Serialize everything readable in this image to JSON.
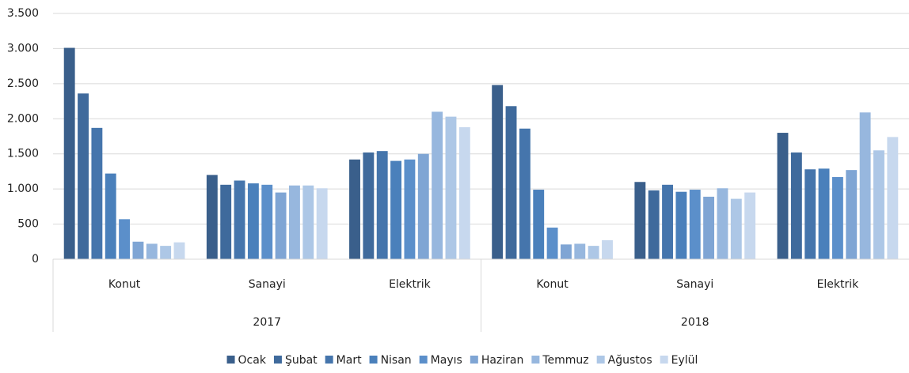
{
  "chart_data": {
    "type": "bar",
    "groups": [
      {
        "name": "2017",
        "categories": [
          "Konut",
          "Sanayi",
          "Elektrik"
        ]
      },
      {
        "name": "2018",
        "categories": [
          "Konut",
          "Sanayi",
          "Elektrik"
        ]
      }
    ],
    "series": [
      {
        "name": "Ocak",
        "color": "#3a5f8b",
        "values": [
          3010,
          1200,
          1420,
          2480,
          1100,
          1800
        ]
      },
      {
        "name": "Şubat",
        "color": "#3f6a9c",
        "values": [
          2360,
          1060,
          1520,
          2180,
          980,
          1520
        ]
      },
      {
        "name": "Mart",
        "color": "#4575ac",
        "values": [
          1870,
          1120,
          1540,
          1860,
          1060,
          1280
        ]
      },
      {
        "name": "Nisan",
        "color": "#4a80bb",
        "values": [
          1220,
          1080,
          1400,
          990,
          960,
          1290
        ]
      },
      {
        "name": "Mayıs",
        "color": "#5b8fca",
        "values": [
          570,
          1060,
          1420,
          450,
          990,
          1170
        ]
      },
      {
        "name": "Haziran",
        "color": "#7fa5d4",
        "values": [
          250,
          950,
          1500,
          210,
          890,
          1270
        ]
      },
      {
        "name": "Temmuz",
        "color": "#97b7de",
        "values": [
          220,
          1050,
          2100,
          220,
          1010,
          2090
        ]
      },
      {
        "name": "Ağustos",
        "color": "#adc7e6",
        "values": [
          190,
          1050,
          2030,
          190,
          860,
          1550
        ]
      },
      {
        "name": "Eylül",
        "color": "#c7d8ee",
        "values": [
          240,
          1010,
          1880,
          270,
          950,
          1740
        ]
      }
    ],
    "ylim": [
      0,
      3500
    ],
    "yticks": [
      0,
      500,
      {
        "value": 1000,
        "label": "1.000"
      },
      {
        "value": 1500,
        "label": "1.500"
      },
      {
        "value": 2000,
        "label": "2.000"
      },
      {
        "value": 2500,
        "label": "2.500"
      },
      {
        "value": 3000,
        "label": "3.000"
      },
      {
        "value": 3500,
        "label": "3.500"
      }
    ],
    "grid": true,
    "legend": "bottom"
  }
}
